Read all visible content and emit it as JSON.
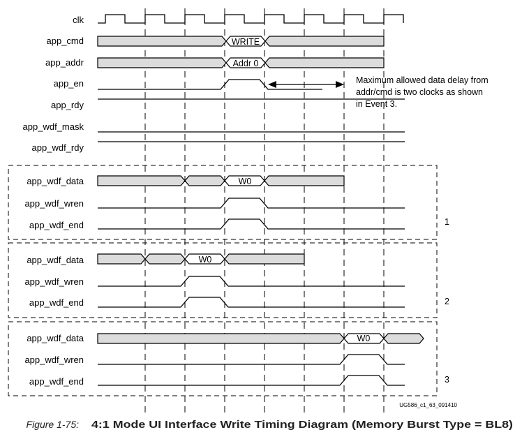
{
  "top_signals": [
    "clk",
    "app_cmd",
    "app_addr",
    "app_en",
    "app_rdy",
    "app_wdf_mask",
    "app_wdf_rdy"
  ],
  "bus_labels": {
    "cmd": "WRITE",
    "addr": "Addr 0",
    "data_word": "W0"
  },
  "annotation": [
    "Maximum allowed data delay from",
    "addr/cmd is two clocks as shown",
    "in Event 3."
  ],
  "events": [
    {
      "number": "1",
      "signals": [
        "app_wdf_data",
        "app_wdf_wren",
        "app_wdf_end"
      ]
    },
    {
      "number": "2",
      "signals": [
        "app_wdf_data",
        "app_wdf_wren",
        "app_wdf_end"
      ]
    },
    {
      "number": "3",
      "signals": [
        "app_wdf_data",
        "app_wdf_wren",
        "app_wdf_end"
      ]
    }
  ],
  "figure_code": "UG586_c1_63_091410",
  "caption": {
    "figure": "Figure 1-75:",
    "title": "4:1 Mode UI Interface Write Timing Diagram (Memory Burst Type = BL8)"
  }
}
